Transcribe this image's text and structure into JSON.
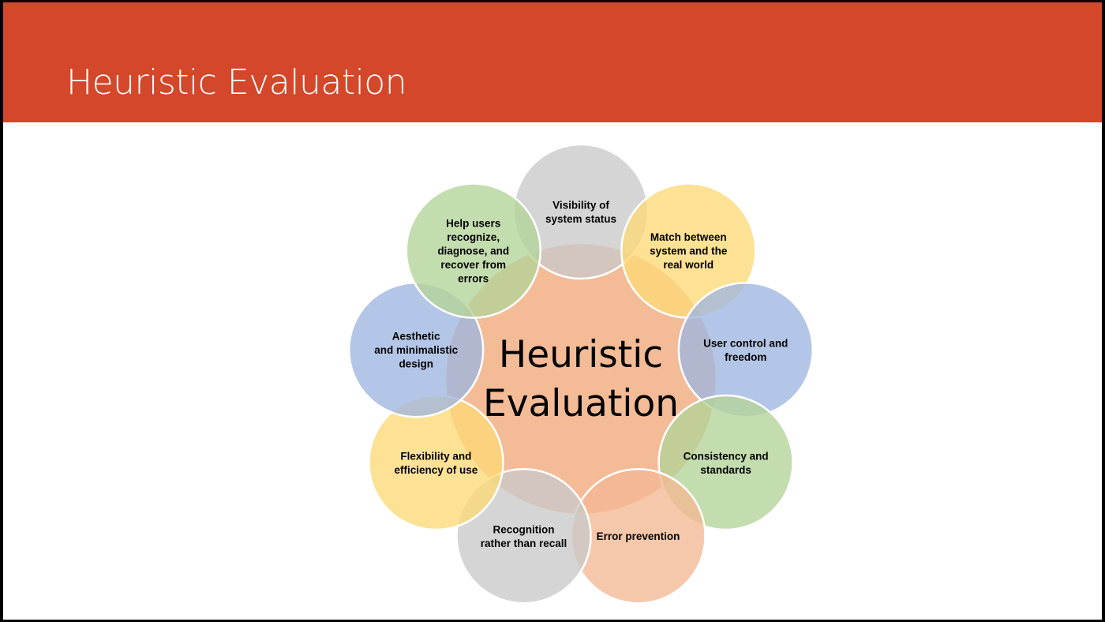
{
  "slide": {
    "title": "Heuristic Evaluation",
    "accent_color": "#d4472a"
  },
  "diagram": {
    "center": {
      "lines": [
        "Heuristic",
        "Evaluation"
      ],
      "color": "#f4bb97"
    },
    "petals": [
      {
        "lines": [
          "Visibility of",
          "system status"
        ],
        "color": "#c9c9c9"
      },
      {
        "lines": [
          "Match between",
          "system and the",
          "real world"
        ],
        "color": "#fdd976"
      },
      {
        "lines": [
          "User control and",
          "freedom"
        ],
        "color": "#9fb6e0"
      },
      {
        "lines": [
          "Consistency and",
          "standards"
        ],
        "color": "#b3d398"
      },
      {
        "lines": [
          "Error prevention"
        ],
        "color": "#f4b994"
      },
      {
        "lines": [
          "Recognition",
          "rather than recall"
        ],
        "color": "#c9c9c9"
      },
      {
        "lines": [
          "Flexibility and",
          "efficiency of use"
        ],
        "color": "#fdd976"
      },
      {
        "lines": [
          "Aesthetic",
          "and minimalistic",
          "design"
        ],
        "color": "#9fb6e0"
      },
      {
        "lines": [
          "Help users",
          "recognize,",
          "diagnose, and",
          "recover from",
          "errors"
        ],
        "color": "#b3d398"
      }
    ]
  }
}
